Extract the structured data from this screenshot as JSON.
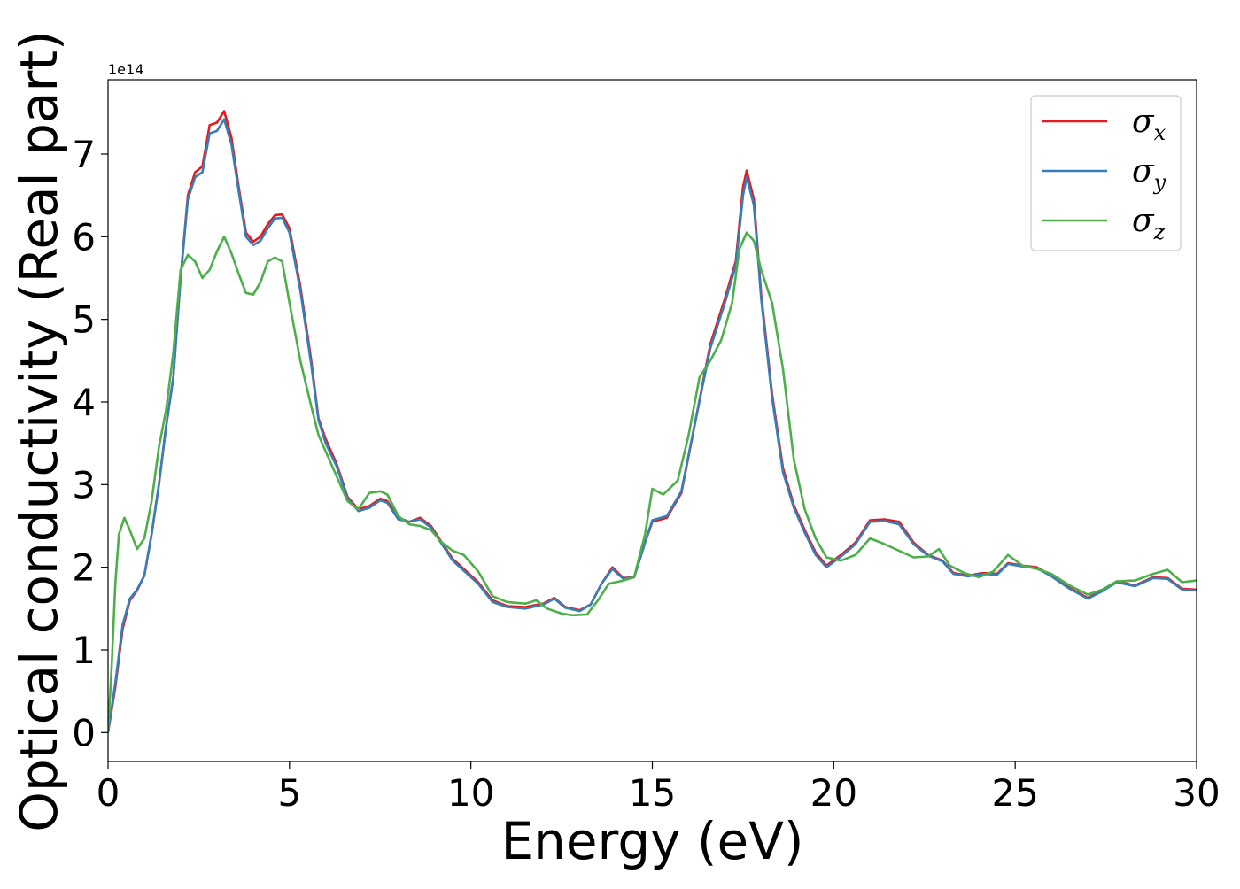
{
  "chart_data": {
    "type": "line",
    "xlabel": "Energy (eV)",
    "ylabel": "Optical conductivity (Real part)",
    "y_offset_label": "1e14",
    "xlim": [
      0,
      30
    ],
    "ylim": [
      -0.35,
      7.9
    ],
    "x_ticks": [
      0,
      5,
      10,
      15,
      20,
      25,
      30
    ],
    "y_ticks": [
      0,
      1,
      2,
      3,
      4,
      5,
      6,
      7
    ],
    "grid": false,
    "legend_position": "top-right",
    "series": [
      {
        "name": "σx",
        "base": "σ",
        "sub": "x",
        "color": "#e41a1c",
        "points": [
          [
            0,
            0
          ],
          [
            0.2,
            0.55
          ],
          [
            0.4,
            1.25
          ],
          [
            0.6,
            1.6
          ],
          [
            0.8,
            1.72
          ],
          [
            1.0,
            1.9
          ],
          [
            1.2,
            2.4
          ],
          [
            1.4,
            3.0
          ],
          [
            1.6,
            3.7
          ],
          [
            1.8,
            4.3
          ],
          [
            2.0,
            5.5
          ],
          [
            2.2,
            6.5
          ],
          [
            2.4,
            6.78
          ],
          [
            2.6,
            6.85
          ],
          [
            2.8,
            7.35
          ],
          [
            3.0,
            7.38
          ],
          [
            3.2,
            7.52
          ],
          [
            3.4,
            7.2
          ],
          [
            3.6,
            6.6
          ],
          [
            3.8,
            6.05
          ],
          [
            4.0,
            5.94
          ],
          [
            4.2,
            6.0
          ],
          [
            4.4,
            6.15
          ],
          [
            4.6,
            6.26
          ],
          [
            4.8,
            6.27
          ],
          [
            5.0,
            6.1
          ],
          [
            5.3,
            5.4
          ],
          [
            5.6,
            4.5
          ],
          [
            5.8,
            3.8
          ],
          [
            6.0,
            3.55
          ],
          [
            6.3,
            3.25
          ],
          [
            6.6,
            2.85
          ],
          [
            6.9,
            2.7
          ],
          [
            7.2,
            2.74
          ],
          [
            7.5,
            2.83
          ],
          [
            7.7,
            2.8
          ],
          [
            8.0,
            2.6
          ],
          [
            8.3,
            2.55
          ],
          [
            8.6,
            2.6
          ],
          [
            8.9,
            2.5
          ],
          [
            9.2,
            2.3
          ],
          [
            9.5,
            2.1
          ],
          [
            9.8,
            1.98
          ],
          [
            10.2,
            1.82
          ],
          [
            10.6,
            1.6
          ],
          [
            11.0,
            1.53
          ],
          [
            11.5,
            1.52
          ],
          [
            12.0,
            1.56
          ],
          [
            12.3,
            1.63
          ],
          [
            12.6,
            1.52
          ],
          [
            13.0,
            1.48
          ],
          [
            13.3,
            1.55
          ],
          [
            13.6,
            1.8
          ],
          [
            13.9,
            2.0
          ],
          [
            14.2,
            1.87
          ],
          [
            14.5,
            1.88
          ],
          [
            14.8,
            2.3
          ],
          [
            15.0,
            2.55
          ],
          [
            15.4,
            2.6
          ],
          [
            15.8,
            2.9
          ],
          [
            16.2,
            3.8
          ],
          [
            16.6,
            4.7
          ],
          [
            17.0,
            5.25
          ],
          [
            17.3,
            5.7
          ],
          [
            17.5,
            6.6
          ],
          [
            17.6,
            6.8
          ],
          [
            17.8,
            6.45
          ],
          [
            18.0,
            5.3
          ],
          [
            18.3,
            4.1
          ],
          [
            18.6,
            3.2
          ],
          [
            18.9,
            2.75
          ],
          [
            19.2,
            2.45
          ],
          [
            19.5,
            2.18
          ],
          [
            19.8,
            2.02
          ],
          [
            20.2,
            2.15
          ],
          [
            20.6,
            2.3
          ],
          [
            21.0,
            2.57
          ],
          [
            21.4,
            2.58
          ],
          [
            21.8,
            2.55
          ],
          [
            22.2,
            2.3
          ],
          [
            22.6,
            2.15
          ],
          [
            23.0,
            2.08
          ],
          [
            23.3,
            1.93
          ],
          [
            23.7,
            1.9
          ],
          [
            24.1,
            1.93
          ],
          [
            24.5,
            1.92
          ],
          [
            24.8,
            2.05
          ],
          [
            25.2,
            2.02
          ],
          [
            25.6,
            2.0
          ],
          [
            26.0,
            1.9
          ],
          [
            26.5,
            1.75
          ],
          [
            27.0,
            1.63
          ],
          [
            27.4,
            1.72
          ],
          [
            27.8,
            1.83
          ],
          [
            28.3,
            1.78
          ],
          [
            28.8,
            1.88
          ],
          [
            29.2,
            1.87
          ],
          [
            29.6,
            1.74
          ],
          [
            30.0,
            1.73
          ]
        ]
      },
      {
        "name": "σy",
        "base": "σ",
        "sub": "y",
        "color": "#377eb8",
        "points": [
          [
            0,
            0
          ],
          [
            0.2,
            0.6
          ],
          [
            0.4,
            1.3
          ],
          [
            0.6,
            1.62
          ],
          [
            0.8,
            1.73
          ],
          [
            1.0,
            1.9
          ],
          [
            1.2,
            2.4
          ],
          [
            1.4,
            3.0
          ],
          [
            1.6,
            3.7
          ],
          [
            1.8,
            4.3
          ],
          [
            2.0,
            5.5
          ],
          [
            2.2,
            6.45
          ],
          [
            2.4,
            6.72
          ],
          [
            2.6,
            6.78
          ],
          [
            2.8,
            7.25
          ],
          [
            3.0,
            7.28
          ],
          [
            3.2,
            7.42
          ],
          [
            3.4,
            7.12
          ],
          [
            3.6,
            6.55
          ],
          [
            3.8,
            6.0
          ],
          [
            4.0,
            5.9
          ],
          [
            4.2,
            5.95
          ],
          [
            4.4,
            6.1
          ],
          [
            4.6,
            6.22
          ],
          [
            4.8,
            6.23
          ],
          [
            5.0,
            6.05
          ],
          [
            5.3,
            5.35
          ],
          [
            5.6,
            4.45
          ],
          [
            5.8,
            3.78
          ],
          [
            6.0,
            3.5
          ],
          [
            6.3,
            3.22
          ],
          [
            6.6,
            2.83
          ],
          [
            6.9,
            2.68
          ],
          [
            7.2,
            2.72
          ],
          [
            7.5,
            2.81
          ],
          [
            7.7,
            2.78
          ],
          [
            8.0,
            2.58
          ],
          [
            8.3,
            2.55
          ],
          [
            8.6,
            2.58
          ],
          [
            8.9,
            2.48
          ],
          [
            9.2,
            2.28
          ],
          [
            9.5,
            2.08
          ],
          [
            9.8,
            1.96
          ],
          [
            10.2,
            1.8
          ],
          [
            10.6,
            1.58
          ],
          [
            11.0,
            1.52
          ],
          [
            11.5,
            1.5
          ],
          [
            12.0,
            1.55
          ],
          [
            12.3,
            1.62
          ],
          [
            12.6,
            1.51
          ],
          [
            13.0,
            1.47
          ],
          [
            13.3,
            1.55
          ],
          [
            13.6,
            1.8
          ],
          [
            13.9,
            1.98
          ],
          [
            14.2,
            1.86
          ],
          [
            14.5,
            1.88
          ],
          [
            14.8,
            2.3
          ],
          [
            15.0,
            2.57
          ],
          [
            15.4,
            2.62
          ],
          [
            15.8,
            2.92
          ],
          [
            16.2,
            3.8
          ],
          [
            16.6,
            4.65
          ],
          [
            17.0,
            5.2
          ],
          [
            17.3,
            5.65
          ],
          [
            17.5,
            6.5
          ],
          [
            17.6,
            6.72
          ],
          [
            17.8,
            6.38
          ],
          [
            18.0,
            5.25
          ],
          [
            18.3,
            4.05
          ],
          [
            18.6,
            3.15
          ],
          [
            18.9,
            2.72
          ],
          [
            19.2,
            2.42
          ],
          [
            19.5,
            2.15
          ],
          [
            19.8,
            2.0
          ],
          [
            20.2,
            2.13
          ],
          [
            20.6,
            2.28
          ],
          [
            21.0,
            2.55
          ],
          [
            21.4,
            2.56
          ],
          [
            21.8,
            2.52
          ],
          [
            22.2,
            2.28
          ],
          [
            22.6,
            2.14
          ],
          [
            23.0,
            2.07
          ],
          [
            23.3,
            1.92
          ],
          [
            23.7,
            1.89
          ],
          [
            24.1,
            1.92
          ],
          [
            24.5,
            1.91
          ],
          [
            24.8,
            2.04
          ],
          [
            25.2,
            2.01
          ],
          [
            25.6,
            1.99
          ],
          [
            26.0,
            1.89
          ],
          [
            26.5,
            1.74
          ],
          [
            27.0,
            1.62
          ],
          [
            27.4,
            1.71
          ],
          [
            27.8,
            1.82
          ],
          [
            28.3,
            1.77
          ],
          [
            28.8,
            1.87
          ],
          [
            29.2,
            1.86
          ],
          [
            29.6,
            1.73
          ],
          [
            30.0,
            1.72
          ]
        ]
      },
      {
        "name": "σz",
        "base": "σ",
        "sub": "z",
        "color": "#4daf4a",
        "points": [
          [
            0,
            0
          ],
          [
            0.1,
            0.8
          ],
          [
            0.2,
            1.8
          ],
          [
            0.3,
            2.4
          ],
          [
            0.45,
            2.6
          ],
          [
            0.6,
            2.45
          ],
          [
            0.8,
            2.22
          ],
          [
            1.0,
            2.35
          ],
          [
            1.2,
            2.8
          ],
          [
            1.4,
            3.45
          ],
          [
            1.6,
            3.9
          ],
          [
            1.8,
            4.6
          ],
          [
            2.0,
            5.6
          ],
          [
            2.2,
            5.78
          ],
          [
            2.4,
            5.7
          ],
          [
            2.6,
            5.5
          ],
          [
            2.8,
            5.6
          ],
          [
            3.0,
            5.82
          ],
          [
            3.2,
            6.0
          ],
          [
            3.4,
            5.8
          ],
          [
            3.6,
            5.55
          ],
          [
            3.8,
            5.32
          ],
          [
            4.0,
            5.3
          ],
          [
            4.2,
            5.45
          ],
          [
            4.4,
            5.7
          ],
          [
            4.6,
            5.75
          ],
          [
            4.8,
            5.7
          ],
          [
            5.0,
            5.2
          ],
          [
            5.3,
            4.5
          ],
          [
            5.6,
            3.95
          ],
          [
            5.8,
            3.6
          ],
          [
            6.0,
            3.4
          ],
          [
            6.3,
            3.1
          ],
          [
            6.6,
            2.8
          ],
          [
            6.9,
            2.7
          ],
          [
            7.2,
            2.9
          ],
          [
            7.5,
            2.92
          ],
          [
            7.7,
            2.88
          ],
          [
            8.0,
            2.62
          ],
          [
            8.3,
            2.52
          ],
          [
            8.6,
            2.5
          ],
          [
            8.9,
            2.45
          ],
          [
            9.2,
            2.3
          ],
          [
            9.5,
            2.2
          ],
          [
            9.8,
            2.15
          ],
          [
            10.2,
            1.95
          ],
          [
            10.6,
            1.65
          ],
          [
            11.0,
            1.58
          ],
          [
            11.5,
            1.56
          ],
          [
            11.8,
            1.6
          ],
          [
            12.1,
            1.5
          ],
          [
            12.5,
            1.44
          ],
          [
            12.8,
            1.42
          ],
          [
            13.2,
            1.43
          ],
          [
            13.5,
            1.6
          ],
          [
            13.8,
            1.8
          ],
          [
            14.2,
            1.84
          ],
          [
            14.5,
            1.88
          ],
          [
            14.8,
            2.4
          ],
          [
            15.0,
            2.95
          ],
          [
            15.3,
            2.88
          ],
          [
            15.7,
            3.05
          ],
          [
            16.0,
            3.6
          ],
          [
            16.3,
            4.3
          ],
          [
            16.6,
            4.5
          ],
          [
            16.9,
            4.75
          ],
          [
            17.2,
            5.2
          ],
          [
            17.4,
            5.85
          ],
          [
            17.6,
            6.05
          ],
          [
            17.8,
            5.95
          ],
          [
            18.0,
            5.6
          ],
          [
            18.3,
            5.2
          ],
          [
            18.6,
            4.4
          ],
          [
            18.9,
            3.3
          ],
          [
            19.2,
            2.7
          ],
          [
            19.5,
            2.35
          ],
          [
            19.8,
            2.12
          ],
          [
            20.2,
            2.08
          ],
          [
            20.6,
            2.15
          ],
          [
            21.0,
            2.35
          ],
          [
            21.4,
            2.28
          ],
          [
            21.8,
            2.2
          ],
          [
            22.2,
            2.12
          ],
          [
            22.6,
            2.13
          ],
          [
            22.9,
            2.22
          ],
          [
            23.2,
            2.02
          ],
          [
            23.6,
            1.93
          ],
          [
            24.0,
            1.88
          ],
          [
            24.4,
            1.95
          ],
          [
            24.8,
            2.15
          ],
          [
            25.2,
            2.02
          ],
          [
            25.6,
            1.98
          ],
          [
            26.0,
            1.92
          ],
          [
            26.5,
            1.78
          ],
          [
            27.0,
            1.67
          ],
          [
            27.4,
            1.73
          ],
          [
            27.8,
            1.83
          ],
          [
            28.3,
            1.84
          ],
          [
            28.8,
            1.92
          ],
          [
            29.2,
            1.97
          ],
          [
            29.6,
            1.82
          ],
          [
            30.0,
            1.84
          ]
        ]
      }
    ]
  }
}
